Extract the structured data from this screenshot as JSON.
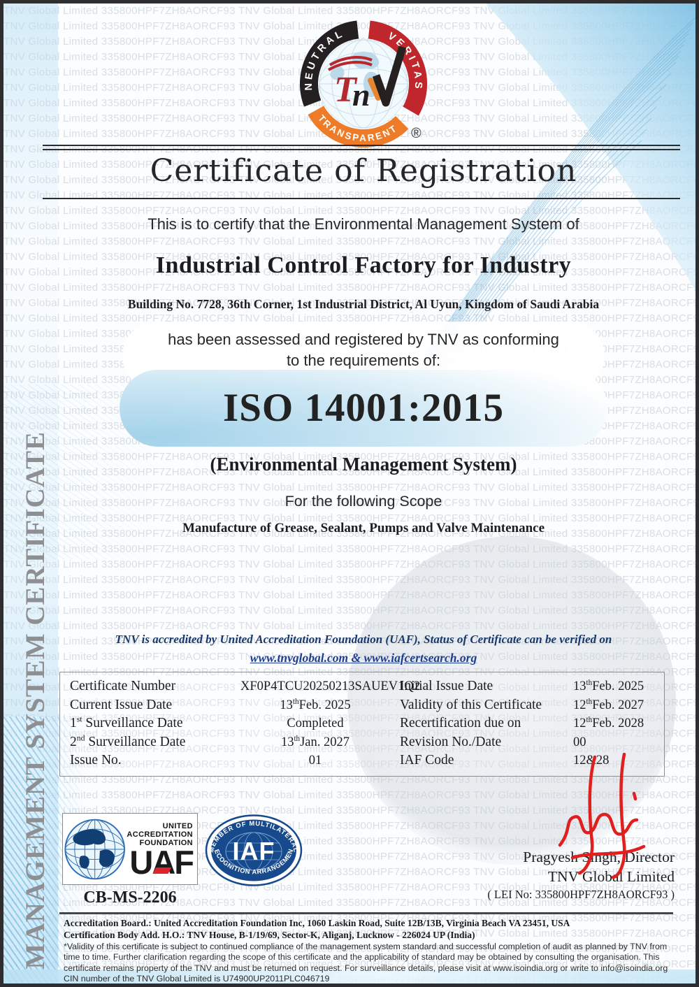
{
  "watermark": {
    "text": "TNV Global Limited 335800HPF7ZH8AORCF93"
  },
  "logo": {
    "arc_top_left": "NEUTRAL",
    "arc_top_right": "VERITAS",
    "arc_bottom": "TRANSPARENT",
    "monogram_t": "T",
    "monogram_n": "n",
    "registered_mark": "®",
    "colors": {
      "black_arc": "#242021",
      "red_arc": "#c0272d",
      "orange_arc": "#ee7b28"
    }
  },
  "title": "Certificate of Registration",
  "intro": "This is to certify that the Environmental Management System of",
  "company": {
    "name": "Industrial Control Factory for Industry",
    "address": "Building No. 7728, 36th Corner, 1st Industrial District, Al Uyun, Kingdom of Saudi Arabia"
  },
  "assessment": {
    "line1": "has been assessed and registered by TNV as conforming",
    "line2": "to the requirements of:"
  },
  "standard": {
    "code": "ISO 14001:2015",
    "system": "(Environmental Management System)"
  },
  "scope": {
    "heading": "For the following Scope",
    "text": "Manufacture of Grease, Sealant, Pumps and Valve Maintenance"
  },
  "accreditation_note": {
    "line": "TNV is accredited by United Accreditation Foundation (UAF), Status of Certificate can be verified on",
    "links": "www.tnvglobal.com & www.iafcertsearch.org"
  },
  "details": {
    "left": [
      {
        "label": "Certificate Number",
        "value": "XF0P4TCU20250213SAUEV1Q2"
      },
      {
        "label": "Current Issue Date",
        "value": "13^th^Feb. 2025"
      },
      {
        "label": "1^st^ Surveillance Date",
        "value": "Completed"
      },
      {
        "label": "2^nd^ Surveillance Date",
        "value": "13^th^Jan. 2027"
      },
      {
        "label": "Issue No.",
        "value": "01"
      }
    ],
    "right": [
      {
        "label": "Initial Issue Date",
        "value": "13^th^Feb. 2025"
      },
      {
        "label": "Validity of this Certificate",
        "value": "12^th^Feb. 2027"
      },
      {
        "label": "Recertification due on",
        "value": "12^th^Feb. 2028"
      },
      {
        "label": "Revision No./Date",
        "value": "00"
      },
      {
        "label": "IAF Code",
        "value": "12&28"
      }
    ]
  },
  "uaf": {
    "org_lines": [
      "UNITED",
      "ACCREDITATION",
      "FOUNDATION"
    ],
    "acronym": "UAF",
    "code": "CB-MS-2206"
  },
  "iaf": {
    "top_text": "MEMBER OF MULTILATERAL",
    "bottom_text": "RECOGNITION ARRANGEMENT",
    "acronym": "IAF"
  },
  "signatory": {
    "name_title": "Pragyesh Singh, Director",
    "org": "TNV Global Limited",
    "lei": "( LEI No: 335800HPF7ZH8AORCF93 )"
  },
  "sidebar": {
    "label": "MANAGEMENT SYSTEM CERTIFICATE"
  },
  "footer": {
    "accreditation_board": "Accreditation Board.: United Accreditation Foundation Inc, 1060 Laskin Road, Suite 12B/13B, Virginia Beach VA 23451, USA",
    "certification_body": "Certification Body Add. H.O.: TNV House, B-1/19/69, Sector-K, Aliganj, Lucknow - 226024 UP (India)",
    "disclaimer": "*Validity of this certificate is subject to continued compliance of the management system standard and successful completion of  audit as planned by TNV from time to time. Further clarification regarding the scope of this certificate and the applicability of standard may be obtained by consulting the organisation. This certificate remains property of the TNV and must be returned on request. For surveillance details, please visit at www.isoindia.org or write to info@isoindia.org CIN number of the TNV Global Limited is U74900UP2011PLC046719"
  }
}
